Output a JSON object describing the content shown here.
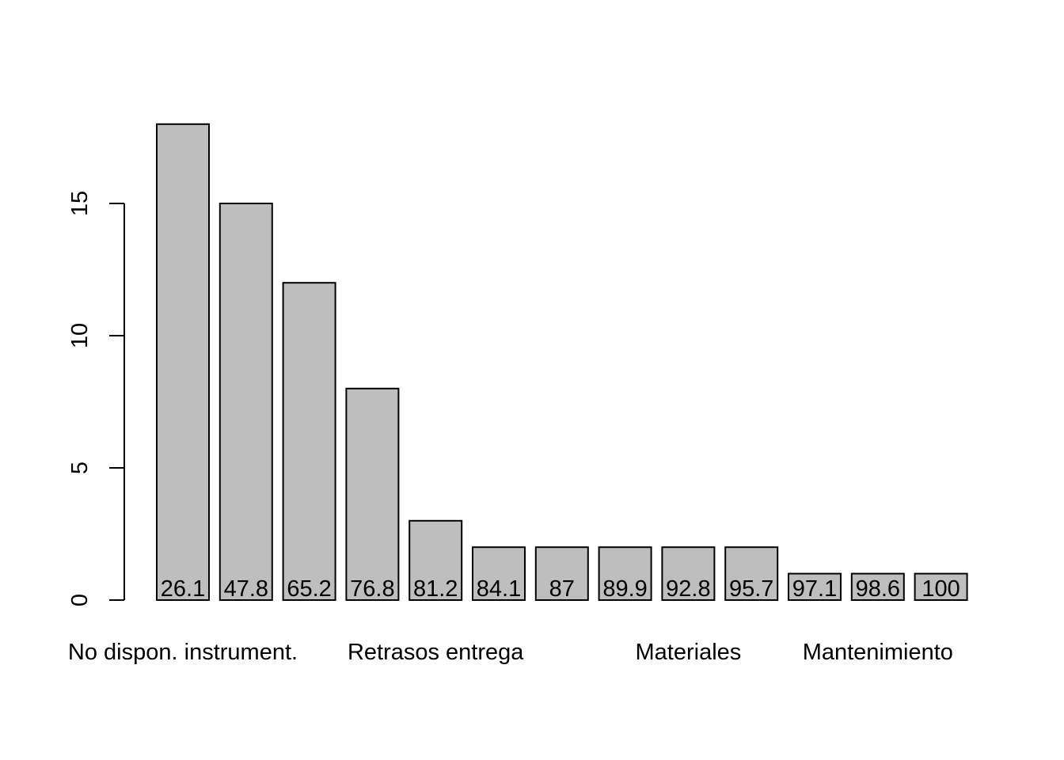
{
  "chart_data": {
    "type": "bar",
    "title": "",
    "xlabel": "",
    "ylabel": "",
    "ylim": [
      0,
      19.2
    ],
    "yticks": [
      0,
      5,
      10,
      15
    ],
    "grid": false,
    "bar_color": "#bebebe",
    "bar_stroke": "#000000",
    "values": [
      18,
      15,
      12,
      8,
      3,
      2,
      2,
      2,
      2,
      2,
      1,
      1,
      1
    ],
    "data_labels": [
      "26.1",
      "47.8",
      "65.2",
      "76.8",
      "81.2",
      "84.1",
      "87",
      "89.9",
      "92.8",
      "95.7",
      "97.1",
      "98.6",
      "100"
    ],
    "category_labels": [
      {
        "text": "No dispon. instrument.",
        "bar_index": 0
      },
      {
        "text": "Retrasos entrega",
        "bar_index": 4
      },
      {
        "text": "Materiales",
        "bar_index": 8
      },
      {
        "text": "Mantenimiento",
        "bar_index": 11
      }
    ]
  }
}
